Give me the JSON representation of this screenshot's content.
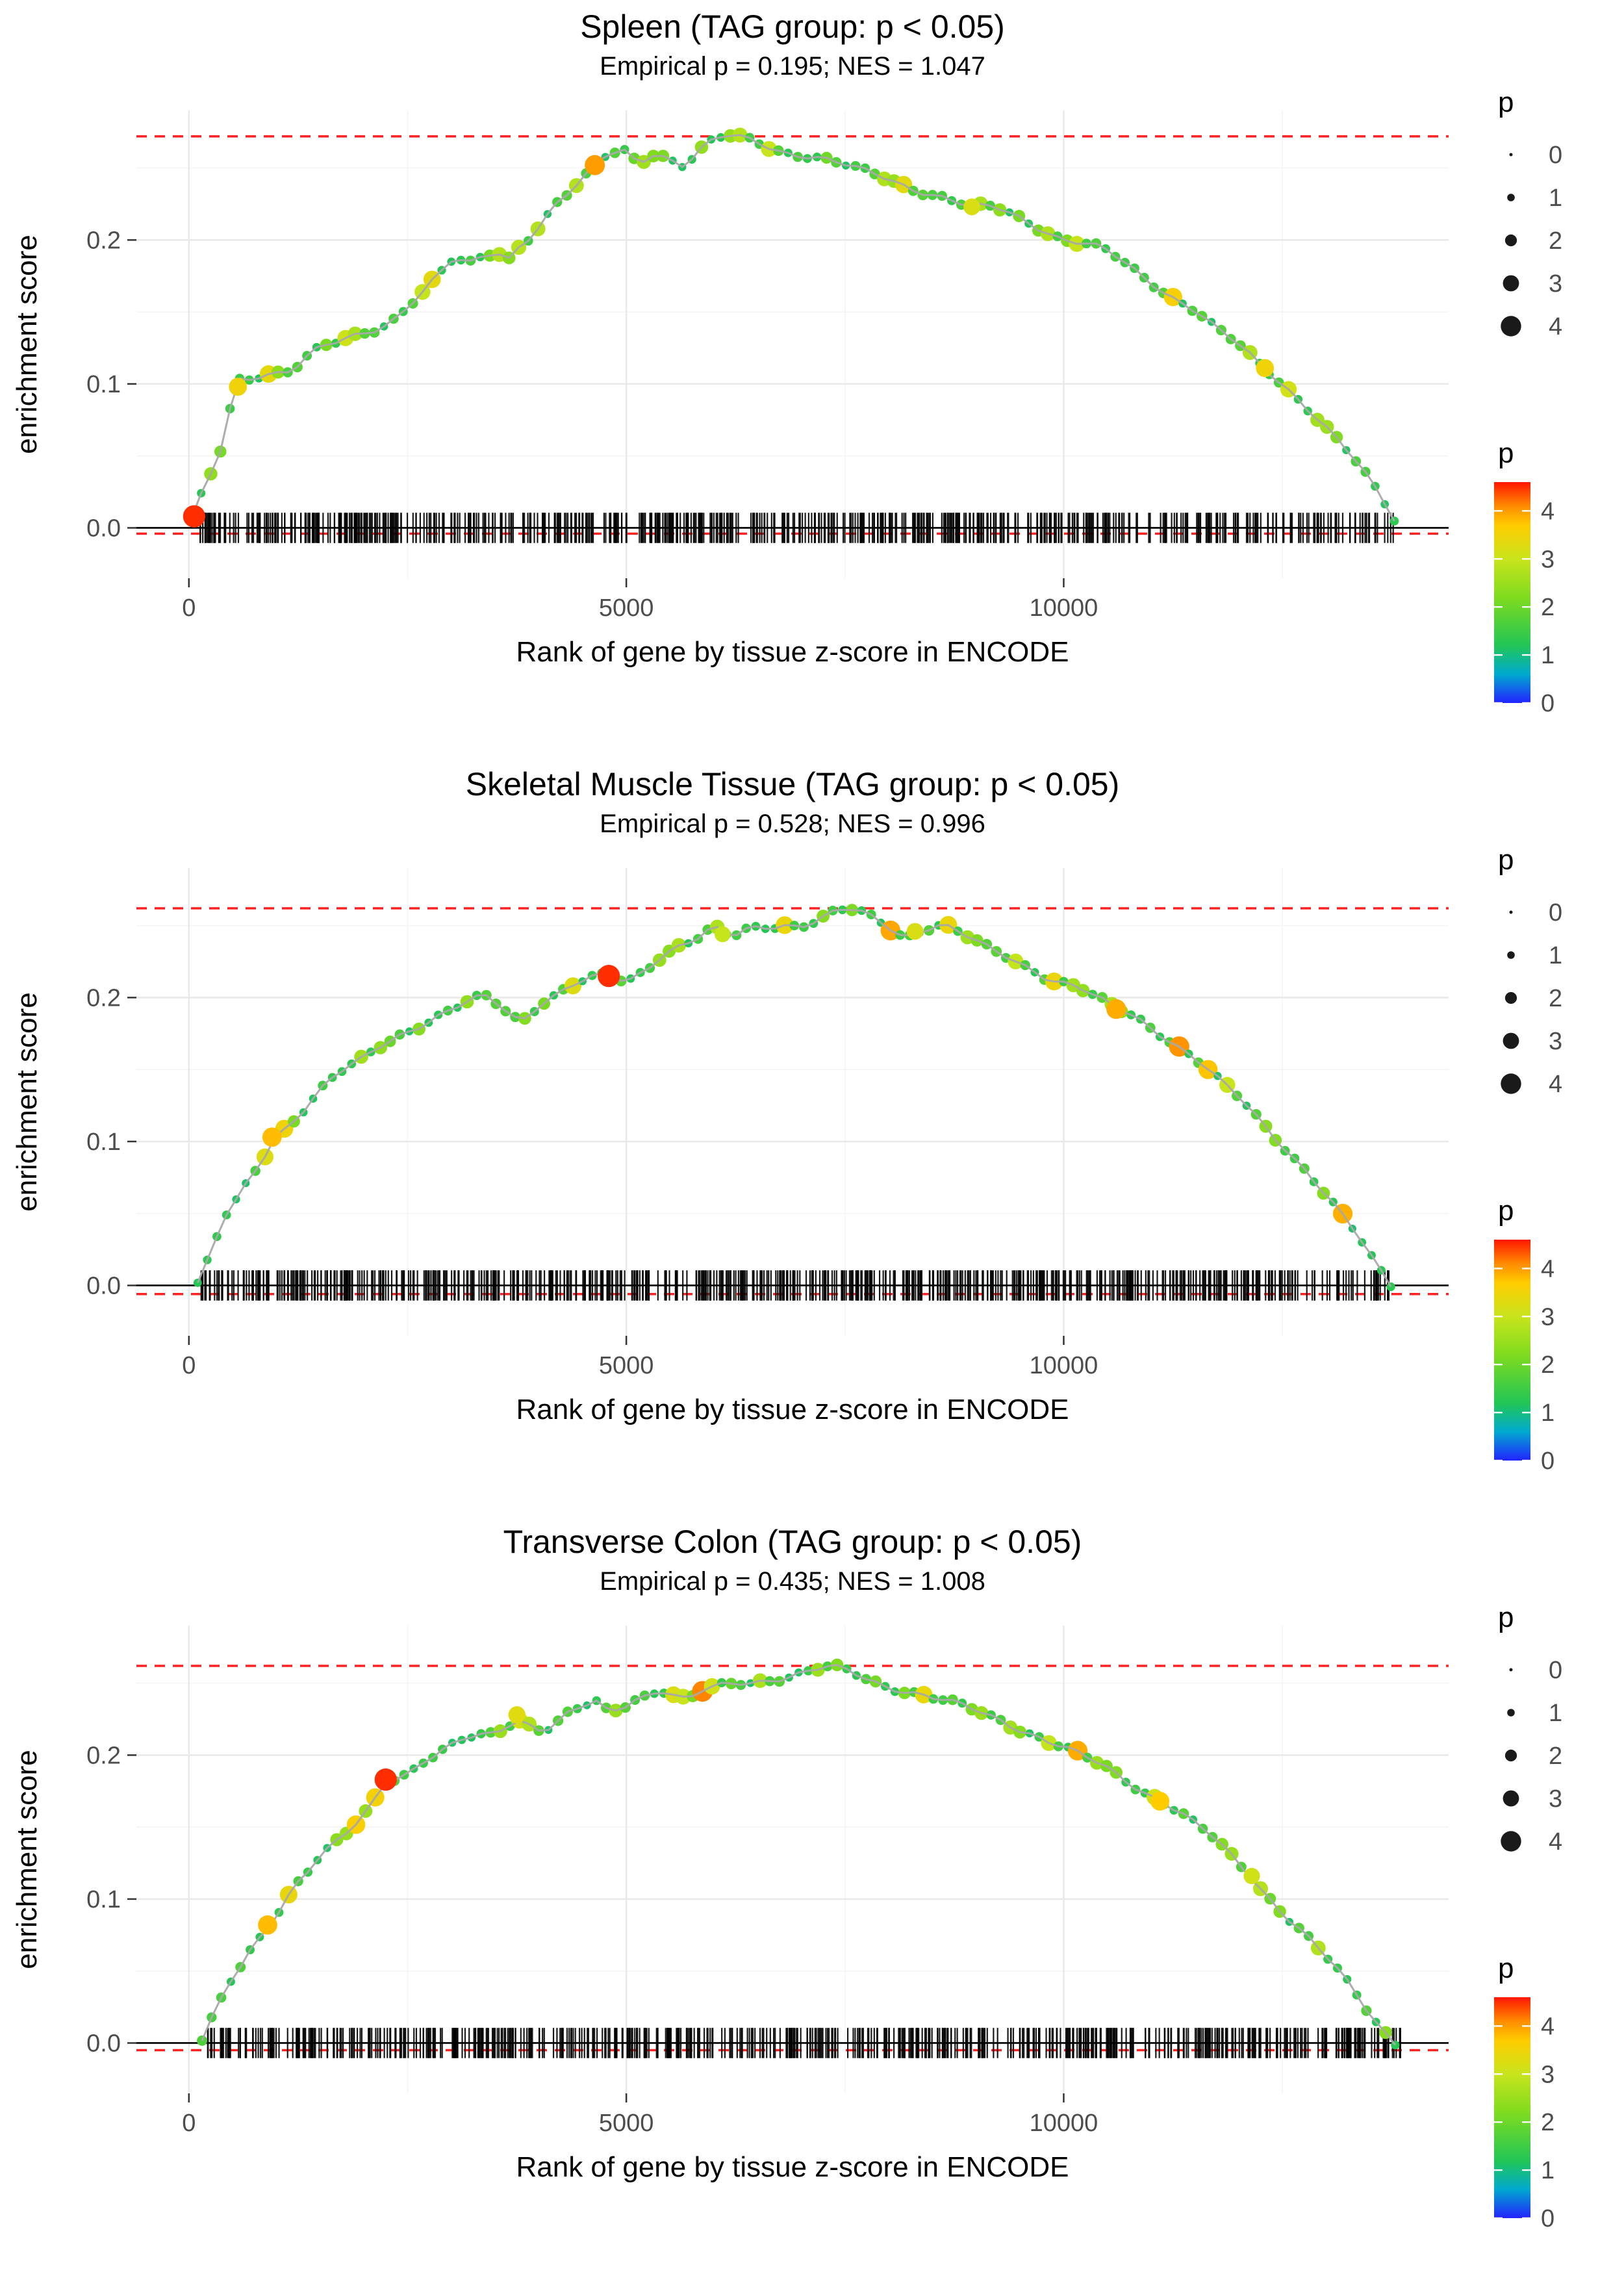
{
  "style": {
    "dashed_color": "#FF2222",
    "zero_line_color": "#000000",
    "grid_major": "#E8E8E8",
    "grid_minor": "#F4F4F4",
    "rug_color": "#000000",
    "center_line_color": "#A9A9A9",
    "tick_text_color": "#4D4D4D",
    "axis_title_color": "#000000",
    "legend_dot_color": "#1A1A1A"
  },
  "chart_data": {
    "type": "line",
    "xlabel": "Rank of gene by tissue z-score in ENCODE",
    "ylabel": "enrichment score",
    "x_ticks": [
      0,
      5000,
      10000
    ],
    "x_minor": [
      2500,
      7500,
      12500
    ],
    "y_ticks": [
      0.0,
      0.1,
      0.2
    ],
    "y_minor": [
      0.05,
      0.15,
      0.25
    ],
    "x_range": [
      -600,
      14400
    ],
    "y_range": [
      -0.035,
      0.29
    ],
    "size_legend": {
      "title": "p",
      "values": [
        0,
        1,
        2,
        3,
        4
      ]
    },
    "color_legend": {
      "title": "p",
      "tick_values": [
        4,
        3,
        2,
        1,
        0
      ],
      "vmax": 4.6,
      "stops": [
        [
          0,
          "#2222FF"
        ],
        [
          0.6,
          "#00AACF"
        ],
        [
          1.2,
          "#22C655"
        ],
        [
          2.2,
          "#7FDB1F"
        ],
        [
          3.0,
          "#C8E41C"
        ],
        [
          3.7,
          "#FFCC00"
        ],
        [
          4.1,
          "#FF8C00"
        ],
        [
          4.6,
          "#FF1500"
        ]
      ]
    },
    "panels": [
      {
        "title": "Spleen (TAG group: p < 0.05)",
        "subtitle": "Empirical p = 0.195; NES = 1.047",
        "es_max": 0.272,
        "es_min": -0.004,
        "rug_seed": 11,
        "rug_count": 640,
        "rug_xmin": 120,
        "rug_xmax": 13800,
        "curve": [
          [
            30,
            0.006
          ],
          [
            200,
            0.03
          ],
          [
            350,
            0.05
          ],
          [
            550,
            0.098
          ],
          [
            700,
            0.103
          ],
          [
            900,
            0.108
          ],
          [
            1150,
            0.111
          ],
          [
            1420,
            0.123
          ],
          [
            1760,
            0.129
          ],
          [
            2100,
            0.136
          ],
          [
            2350,
            0.146
          ],
          [
            2520,
            0.157
          ],
          [
            2690,
            0.167
          ],
          [
            2860,
            0.177
          ],
          [
            3030,
            0.186
          ],
          [
            3200,
            0.182
          ],
          [
            3370,
            0.187
          ],
          [
            3540,
            0.19
          ],
          [
            3620,
            0.184
          ],
          [
            3710,
            0.192
          ],
          [
            3870,
            0.202
          ],
          [
            4040,
            0.214
          ],
          [
            4210,
            0.227
          ],
          [
            4380,
            0.235
          ],
          [
            4550,
            0.244
          ],
          [
            4690,
            0.254
          ],
          [
            4810,
            0.258
          ],
          [
            4980,
            0.261
          ],
          [
            5140,
            0.255
          ],
          [
            5310,
            0.261
          ],
          [
            5480,
            0.258
          ],
          [
            5650,
            0.253
          ],
          [
            5820,
            0.261
          ],
          [
            5990,
            0.268
          ],
          [
            6160,
            0.271
          ],
          [
            6330,
            0.27
          ],
          [
            6500,
            0.268
          ],
          [
            6750,
            0.263
          ],
          [
            7000,
            0.26
          ],
          [
            7260,
            0.256
          ],
          [
            7600,
            0.249
          ],
          [
            7930,
            0.244
          ],
          [
            8270,
            0.237
          ],
          [
            8610,
            0.23
          ],
          [
            8950,
            0.222
          ],
          [
            9200,
            0.222
          ],
          [
            9460,
            0.217
          ],
          [
            9710,
            0.21
          ],
          [
            9960,
            0.202
          ],
          [
            10220,
            0.197
          ],
          [
            10470,
            0.192
          ],
          [
            10730,
            0.182
          ],
          [
            10980,
            0.172
          ],
          [
            11230,
            0.162
          ],
          [
            11490,
            0.152
          ],
          [
            11740,
            0.138
          ],
          [
            12000,
            0.126
          ],
          [
            12250,
            0.113
          ],
          [
            12500,
            0.101
          ],
          [
            12760,
            0.086
          ],
          [
            13010,
            0.069
          ],
          [
            13260,
            0.051
          ],
          [
            13520,
            0.03
          ],
          [
            13690,
            0.015
          ],
          [
            13820,
            0.002
          ]
        ],
        "highlights": [
          {
            "x": 60,
            "y": 0.008,
            "p": 4.5
          },
          {
            "x": 560,
            "y": 0.098,
            "p": 3.5
          },
          {
            "x": 4640,
            "y": 0.252,
            "p": 4.0
          },
          {
            "x": 8950,
            "y": 0.223,
            "p": 3.2
          },
          {
            "x": 12300,
            "y": 0.111,
            "p": 3.5
          }
        ]
      },
      {
        "title": "Skeletal Muscle Tissue (TAG group: p < 0.05)",
        "subtitle": "Empirical p = 0.528; NES = 0.996",
        "es_max": 0.262,
        "es_min": -0.006,
        "rug_seed": 22,
        "rug_count": 640,
        "rug_xmin": 120,
        "rug_xmax": 13750,
        "curve": [
          [
            100,
            0.0
          ],
          [
            250,
            0.02
          ],
          [
            400,
            0.045
          ],
          [
            550,
            0.06
          ],
          [
            700,
            0.075
          ],
          [
            850,
            0.09
          ],
          [
            950,
            0.103
          ],
          [
            1100,
            0.11
          ],
          [
            1250,
            0.118
          ],
          [
            1400,
            0.128
          ],
          [
            1600,
            0.14
          ],
          [
            1800,
            0.15
          ],
          [
            2000,
            0.158
          ],
          [
            2200,
            0.168
          ],
          [
            2400,
            0.175
          ],
          [
            2600,
            0.18
          ],
          [
            2800,
            0.185
          ],
          [
            3000,
            0.19
          ],
          [
            3200,
            0.196
          ],
          [
            3400,
            0.2
          ],
          [
            3600,
            0.193
          ],
          [
            3800,
            0.186
          ],
          [
            4000,
            0.196
          ],
          [
            4200,
            0.202
          ],
          [
            4400,
            0.208
          ],
          [
            4600,
            0.212
          ],
          [
            4800,
            0.215
          ],
          [
            5000,
            0.212
          ],
          [
            5200,
            0.22
          ],
          [
            5400,
            0.23
          ],
          [
            5600,
            0.236
          ],
          [
            5800,
            0.24
          ],
          [
            6000,
            0.246
          ],
          [
            6200,
            0.242
          ],
          [
            6400,
            0.248
          ],
          [
            6600,
            0.25
          ],
          [
            6800,
            0.252
          ],
          [
            7000,
            0.25
          ],
          [
            7200,
            0.254
          ],
          [
            7400,
            0.258
          ],
          [
            7600,
            0.26
          ],
          [
            7800,
            0.256
          ],
          [
            8000,
            0.25
          ],
          [
            8200,
            0.244
          ],
          [
            8400,
            0.248
          ],
          [
            8600,
            0.25
          ],
          [
            8800,
            0.244
          ],
          [
            9000,
            0.238
          ],
          [
            9200,
            0.232
          ],
          [
            9400,
            0.228
          ],
          [
            9600,
            0.222
          ],
          [
            9800,
            0.215
          ],
          [
            10000,
            0.21
          ],
          [
            10200,
            0.205
          ],
          [
            10400,
            0.198
          ],
          [
            10600,
            0.192
          ],
          [
            10800,
            0.188
          ],
          [
            11000,
            0.18
          ],
          [
            11200,
            0.172
          ],
          [
            11400,
            0.162
          ],
          [
            11600,
            0.152
          ],
          [
            11800,
            0.14
          ],
          [
            12000,
            0.13
          ],
          [
            12200,
            0.118
          ],
          [
            12400,
            0.105
          ],
          [
            12600,
            0.092
          ],
          [
            12800,
            0.078
          ],
          [
            13000,
            0.062
          ],
          [
            13200,
            0.046
          ],
          [
            13400,
            0.03
          ],
          [
            13600,
            0.012
          ],
          [
            13750,
            0.0
          ]
        ],
        "highlights": [
          {
            "x": 950,
            "y": 0.103,
            "p": 3.8
          },
          {
            "x": 4800,
            "y": 0.215,
            "p": 4.5
          },
          {
            "x": 10600,
            "y": 0.192,
            "p": 3.9
          },
          {
            "x": 8300,
            "y": 0.246,
            "p": 3.2
          },
          {
            "x": 6100,
            "y": 0.244,
            "p": 3.0
          }
        ]
      },
      {
        "title": "Transverse Colon (TAG group: p < 0.05)",
        "subtitle": "Empirical p = 0.435; NES = 1.008",
        "es_max": 0.262,
        "es_min": -0.005,
        "rug_seed": 33,
        "rug_count": 640,
        "rug_xmin": 150,
        "rug_xmax": 13850,
        "curve": [
          [
            150,
            0.0
          ],
          [
            300,
            0.02
          ],
          [
            450,
            0.04
          ],
          [
            600,
            0.055
          ],
          [
            750,
            0.07
          ],
          [
            900,
            0.082
          ],
          [
            1050,
            0.095
          ],
          [
            1200,
            0.108
          ],
          [
            1350,
            0.118
          ],
          [
            1500,
            0.128
          ],
          [
            1650,
            0.136
          ],
          [
            1800,
            0.145
          ],
          [
            1950,
            0.155
          ],
          [
            2100,
            0.168
          ],
          [
            2250,
            0.183
          ],
          [
            2400,
            0.186
          ],
          [
            2550,
            0.19
          ],
          [
            2700,
            0.196
          ],
          [
            2850,
            0.2
          ],
          [
            3000,
            0.205
          ],
          [
            3150,
            0.21
          ],
          [
            3300,
            0.213
          ],
          [
            3450,
            0.215
          ],
          [
            3600,
            0.22
          ],
          [
            3750,
            0.226
          ],
          [
            3900,
            0.222
          ],
          [
            4050,
            0.218
          ],
          [
            4200,
            0.222
          ],
          [
            4350,
            0.228
          ],
          [
            4500,
            0.232
          ],
          [
            4650,
            0.236
          ],
          [
            4800,
            0.23
          ],
          [
            4950,
            0.234
          ],
          [
            5100,
            0.24
          ],
          [
            5250,
            0.243
          ],
          [
            5400,
            0.246
          ],
          [
            5550,
            0.242
          ],
          [
            5700,
            0.238
          ],
          [
            5850,
            0.243
          ],
          [
            6000,
            0.246
          ],
          [
            6150,
            0.248
          ],
          [
            6300,
            0.25
          ],
          [
            6500,
            0.252
          ],
          [
            6700,
            0.254
          ],
          [
            6900,
            0.256
          ],
          [
            7100,
            0.258
          ],
          [
            7300,
            0.26
          ],
          [
            7500,
            0.258
          ],
          [
            7700,
            0.254
          ],
          [
            7900,
            0.25
          ],
          [
            8100,
            0.247
          ],
          [
            8300,
            0.244
          ],
          [
            8500,
            0.24
          ],
          [
            8700,
            0.236
          ],
          [
            8900,
            0.232
          ],
          [
            9100,
            0.228
          ],
          [
            9300,
            0.224
          ],
          [
            9500,
            0.219
          ],
          [
            9700,
            0.214
          ],
          [
            9900,
            0.208
          ],
          [
            10100,
            0.202
          ],
          [
            10300,
            0.196
          ],
          [
            10500,
            0.19
          ],
          [
            10700,
            0.183
          ],
          [
            10900,
            0.176
          ],
          [
            11100,
            0.17
          ],
          [
            11300,
            0.162
          ],
          [
            11500,
            0.152
          ],
          [
            11700,
            0.142
          ],
          [
            11900,
            0.13
          ],
          [
            12100,
            0.118
          ],
          [
            12300,
            0.105
          ],
          [
            12500,
            0.092
          ],
          [
            12700,
            0.08
          ],
          [
            12900,
            0.066
          ],
          [
            13100,
            0.052
          ],
          [
            13300,
            0.036
          ],
          [
            13500,
            0.02
          ],
          [
            13700,
            0.006
          ],
          [
            13800,
            0.0
          ]
        ],
        "highlights": [
          {
            "x": 900,
            "y": 0.082,
            "p": 3.8
          },
          {
            "x": 2250,
            "y": 0.183,
            "p": 4.5
          },
          {
            "x": 3750,
            "y": 0.228,
            "p": 3.3
          },
          {
            "x": 11100,
            "y": 0.168,
            "p": 3.7
          },
          {
            "x": 12150,
            "y": 0.116,
            "p": 3.1
          }
        ]
      }
    ]
  }
}
